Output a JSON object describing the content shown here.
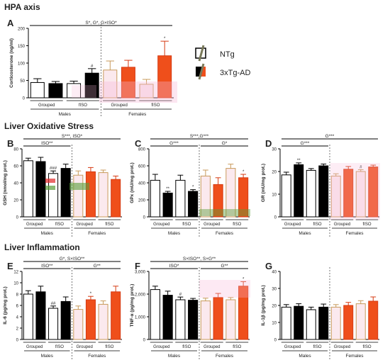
{
  "sections": [
    {
      "label": "HPA axis"
    },
    {
      "label": "Liver Oxidative Stress"
    },
    {
      "label": "Liver Inflammation"
    }
  ],
  "legend": {
    "items": [
      {
        "label": "NTg",
        "style": "open"
      },
      {
        "label": "3xTg-AD",
        "style": "filled"
      }
    ]
  },
  "colors": {
    "male_ntg_fill": "#ffffff",
    "male_ntg_stroke": "#000000",
    "male_tg_fill": "#000000",
    "female_ntg_fill": "#fbe9ee",
    "female_ntg_stroke": "#c89a5b",
    "female_tg_fill": "#ef4f1b",
    "female_tg_stroke": "#d63a12",
    "legend_slash": "#7a7a5a",
    "overlay_pink": "#f7b6d6",
    "overlay_green": "#5a9e3a",
    "overlay_red": "#e12a2a"
  },
  "chart_data": [
    {
      "id": "A",
      "type": "bar",
      "ylabel": "Corticosterone (ng/ml)",
      "ylim": [
        0,
        200
      ],
      "yticks": [
        "0",
        "50",
        "100",
        "150",
        "200"
      ],
      "groups": [
        "Grouped",
        "fISO",
        "Grouped",
        "fISO"
      ],
      "sexes": [
        "Males",
        "Females"
      ],
      "series": [
        {
          "name": "NTg",
          "values": [
            44,
            41,
            80,
            39
          ],
          "errors": [
            11,
            7,
            26,
            14
          ]
        },
        {
          "name": "3xTg-AD",
          "values": [
            41,
            71,
            88,
            121
          ],
          "errors": [
            6,
            13,
            20,
            42
          ]
        }
      ],
      "bar_marks": [
        {
          "bar": 3,
          "text": "#"
        },
        {
          "bar": 7,
          "text": "*"
        }
      ],
      "brackets": [
        {
          "text": "S*, G*, G×ISO*",
          "span": "all",
          "level": 1
        }
      ]
    },
    {
      "id": "B",
      "type": "bar",
      "ylabel": "GSH (nmol/mg prot.)",
      "ylim": [
        0,
        80
      ],
      "yticks": [
        "0",
        "20",
        "40",
        "60",
        "80"
      ],
      "groups": [
        "Grouped",
        "fISO",
        "Grouped",
        "fISO"
      ],
      "sexes": [
        "Males",
        "Females"
      ],
      "series": [
        {
          "name": "NTg",
          "values": [
            66,
            51,
            49,
            52
          ],
          "errors": [
            3,
            3,
            5,
            3
          ]
        },
        {
          "name": "3xTg-AD",
          "values": [
            65,
            57,
            53,
            44
          ],
          "errors": [
            5,
            5,
            5,
            4
          ]
        }
      ],
      "bar_marks": [
        {
          "bar": 2,
          "text": "###"
        }
      ],
      "brackets": [
        {
          "text": "S***, ISO*",
          "span": "all",
          "level": 2
        },
        {
          "text": "ISO**",
          "span": "males",
          "level": 1
        }
      ]
    },
    {
      "id": "C",
      "type": "bar",
      "ylabel": "GPx (mU/mg prot.)",
      "ylim": [
        0,
        800
      ],
      "yticks": [
        "0",
        "200",
        "400",
        "600",
        "800"
      ],
      "groups": [
        "Grouped",
        "fISO",
        "Grouped",
        "fISO"
      ],
      "sexes": [
        "Males",
        "Females"
      ],
      "series": [
        {
          "name": "NTg",
          "values": [
            430,
            430,
            480,
            570
          ],
          "errors": [
            70,
            60,
            70,
            50
          ]
        },
        {
          "name": "3xTg-AD",
          "values": [
            280,
            300,
            380,
            460
          ],
          "errors": [
            20,
            20,
            80,
            40
          ]
        }
      ],
      "bar_marks": [
        {
          "bar": 1,
          "text": "**"
        },
        {
          "bar": 3,
          "text": "*"
        },
        {
          "bar": 7,
          "text": "*"
        }
      ],
      "brackets": [
        {
          "text": "S***,G***",
          "span": "all",
          "level": 2
        },
        {
          "text": "G***",
          "span": "males",
          "level": 1
        },
        {
          "text": "G*",
          "span": "females",
          "level": 1
        }
      ]
    },
    {
      "id": "D",
      "type": "bar",
      "ylabel": "GR (mU/mg prot.)",
      "ylim": [
        0,
        30
      ],
      "yticks": [
        "0",
        "10",
        "20",
        "30"
      ],
      "groups": [
        "Grouped",
        "fISO",
        "Grouped",
        "fISO"
      ],
      "sexes": [
        "Males",
        "Females"
      ],
      "series": [
        {
          "name": "NTg",
          "values": [
            18.5,
            20.5,
            18,
            20
          ],
          "errors": [
            1.2,
            0.8,
            1,
            0.8
          ]
        },
        {
          "name": "3xTg-AD",
          "values": [
            23,
            22.5,
            21,
            22
          ],
          "errors": [
            0.8,
            0.8,
            1.2,
            0.8
          ]
        }
      ],
      "bar_marks": [
        {
          "bar": 1,
          "text": "**"
        },
        {
          "bar": 6,
          "text": "#"
        }
      ],
      "brackets": [
        {
          "text": "G***",
          "span": "all",
          "level": 2
        },
        {
          "text": "G***",
          "span": "males",
          "level": 1
        }
      ]
    },
    {
      "id": "E",
      "type": "bar",
      "ylabel": "IL-6 (pg/mg prot.)",
      "ylim": [
        0,
        12
      ],
      "yticks": [
        "0",
        "2",
        "4",
        "6",
        "8",
        "10",
        "12"
      ],
      "groups": [
        "Grouped",
        "fISO",
        "Grouped",
        "fISO"
      ],
      "sexes": [
        "Males",
        "Females"
      ],
      "series": [
        {
          "name": "NTg",
          "values": [
            8.0,
            5.5,
            5.3,
            6.2
          ],
          "errors": [
            0.6,
            0.4,
            0.6,
            0.6
          ]
        },
        {
          "name": "3xTg-AD",
          "values": [
            8.4,
            6.7,
            7.0,
            8.4
          ],
          "errors": [
            1.0,
            0.8,
            0.6,
            1.0
          ]
        }
      ],
      "bar_marks": [
        {
          "bar": 2,
          "text": "##"
        },
        {
          "bar": 5,
          "text": "*"
        }
      ],
      "brackets": [
        {
          "text": "G*, S×ISO**",
          "span": "all",
          "level": 2
        },
        {
          "text": "ISO**",
          "span": "males",
          "level": 1
        },
        {
          "text": "G**",
          "span": "females",
          "level": 1
        }
      ]
    },
    {
      "id": "F",
      "type": "bar",
      "ylabel": "TNF-α (pg/mg prot.)",
      "ylim": [
        0,
        3000
      ],
      "yticks": [
        "0",
        "1,000",
        "2,000",
        "3,000"
      ],
      "groups": [
        "Grouped",
        "fISO",
        "Grouped",
        "fISO"
      ],
      "sexes": [
        "Males",
        "Females"
      ],
      "series": [
        {
          "name": "NTg",
          "values": [
            2200,
            1750,
            1700,
            1750
          ],
          "errors": [
            150,
            120,
            120,
            100
          ]
        },
        {
          "name": "3xTg-AD",
          "values": [
            1950,
            1730,
            1850,
            2350
          ],
          "errors": [
            180,
            80,
            180,
            200
          ]
        }
      ],
      "bar_marks": [
        {
          "bar": 2,
          "text": "#"
        },
        {
          "bar": 7,
          "text": "*"
        }
      ],
      "brackets": [
        {
          "text": "S×ISO**, S×G**",
          "span": "all",
          "level": 2
        },
        {
          "text": "ISO*",
          "span": "males",
          "level": 1
        },
        {
          "text": "G**",
          "span": "females",
          "level": 1
        }
      ]
    },
    {
      "id": "G",
      "type": "bar",
      "ylabel": "IL-1β (pg/mg prot.)",
      "ylim": [
        0,
        40
      ],
      "yticks": [
        "0",
        "10",
        "20",
        "30",
        "40"
      ],
      "groups": [
        "Grouped",
        "fISO",
        "Grouped",
        "fISO"
      ],
      "sexes": [
        "Males",
        "Females"
      ],
      "series": [
        {
          "name": "NTg",
          "values": [
            19,
            17.5,
            19,
            21
          ],
          "errors": [
            1.5,
            1.5,
            1.5,
            1.8
          ]
        },
        {
          "name": "3xTg-AD",
          "values": [
            19.5,
            19,
            20,
            22.5
          ],
          "errors": [
            1.5,
            1.8,
            1.8,
            2.5
          ]
        }
      ],
      "bar_marks": [],
      "brackets": []
    }
  ]
}
